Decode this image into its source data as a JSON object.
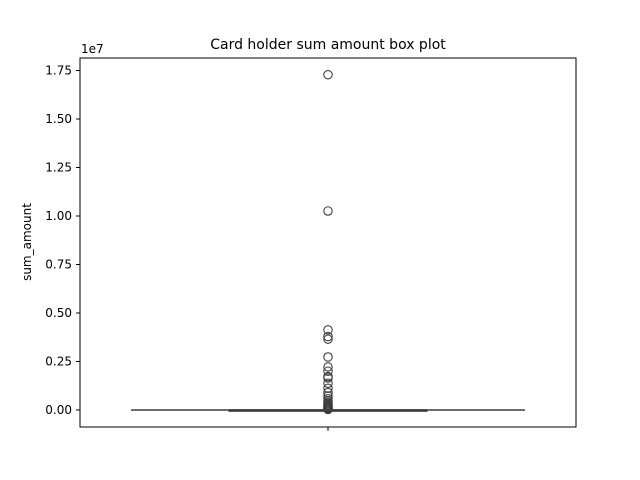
{
  "chart_data": {
    "type": "box",
    "title": "Card holder sum amount box plot",
    "xlabel": "",
    "ylabel": "sum_amount",
    "y_scale_label": "1e7",
    "y_ticks": [
      0.0,
      0.25,
      0.5,
      0.75,
      1.0,
      1.25,
      1.5,
      1.75
    ],
    "y_tick_labels": [
      "0.00",
      "0.25",
      "0.50",
      "0.75",
      "1.00",
      "1.25",
      "1.50",
      "1.75"
    ],
    "ylim": [
      -0.09,
      1.81
    ],
    "grid": false,
    "box": {
      "whisker_low": 0.0,
      "q1": 0.0,
      "median": 0.0,
      "q3": 0.0,
      "whisker_high": 0.002
    },
    "outliers": [
      1.728,
      1.026,
      0.413,
      0.378,
      0.365,
      0.273,
      0.222,
      0.2,
      0.172,
      0.165,
      0.138,
      0.112,
      0.09,
      0.072,
      0.058,
      0.047,
      0.039,
      0.033,
      0.027,
      0.022,
      0.018,
      0.015,
      0.012,
      0.01,
      0.008,
      0.006,
      0.005,
      0.004,
      0.003
    ],
    "colors": {
      "box_line": "#3f3f3f",
      "outlier_edge": "#3f3f3f"
    }
  }
}
